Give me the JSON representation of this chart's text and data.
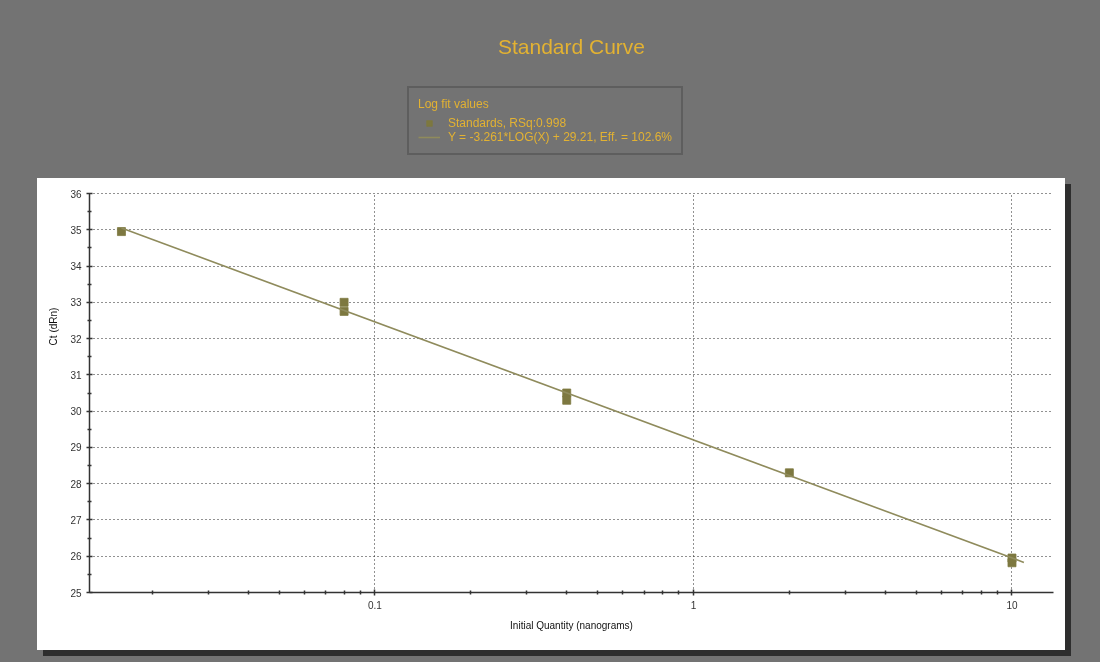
{
  "chart_data": {
    "type": "scatter",
    "title": "Standard Curve",
    "xlabel": "Initial Quantity (nanograms)",
    "ylabel": "Ct (dRn)",
    "legend_title": "Log fit values",
    "log": "x",
    "xlim": [
      0.0127,
      13.5
    ],
    "xticks": [
      {
        "value": 0.02,
        "label": null
      },
      {
        "value": 0.03,
        "label": null
      },
      {
        "value": 0.04,
        "label": null
      },
      {
        "value": 0.05,
        "label": null
      },
      {
        "value": 0.06,
        "label": null
      },
      {
        "value": 0.07,
        "label": null
      },
      {
        "value": 0.08,
        "label": null
      },
      {
        "value": 0.09,
        "label": null
      },
      0.1,
      {
        "value": 0.2,
        "label": null
      },
      {
        "value": 0.3,
        "label": null
      },
      {
        "value": 0.4,
        "label": null
      },
      {
        "value": 0.5,
        "label": null
      },
      {
        "value": 0.6,
        "label": null
      },
      {
        "value": 0.7,
        "label": null
      },
      {
        "value": 0.8,
        "label": null
      },
      {
        "value": 0.9,
        "label": null
      },
      1,
      {
        "value": 2,
        "label": null
      },
      {
        "value": 3,
        "label": null
      },
      {
        "value": 4,
        "label": null
      },
      {
        "value": 5,
        "label": null
      },
      {
        "value": 6,
        "label": null
      },
      {
        "value": 7,
        "label": null
      },
      {
        "value": 8,
        "label": null
      },
      {
        "value": 9,
        "label": null
      },
      10
    ],
    "ylim": [
      25,
      36
    ],
    "yticks": [
      25,
      {
        "value": 25.5,
        "label": null
      },
      26,
      {
        "value": 26.5,
        "label": null
      },
      27,
      {
        "value": 27.5,
        "label": null
      },
      28,
      {
        "value": 28.5,
        "label": null
      },
      29,
      {
        "value": 29.5,
        "label": null
      },
      30,
      {
        "value": 30.5,
        "label": null
      },
      31,
      {
        "value": 31.5,
        "label": null
      },
      32,
      {
        "value": 32.5,
        "label": null
      },
      33,
      {
        "value": 33.5,
        "label": null
      },
      34,
      {
        "value": 34.5,
        "label": null
      },
      35,
      {
        "value": 35.5,
        "label": null
      },
      36
    ],
    "grid": true,
    "legend": "top",
    "marker": "square",
    "series": [
      {
        "name": "Standards, RSq:0.998",
        "color": "#7d7840",
        "x": [
          0.016,
          0.08,
          0.08,
          0.4,
          0.4,
          2,
          10,
          10
        ],
        "values": [
          34.95,
          33.0,
          32.75,
          30.5,
          30.3,
          28.3,
          25.95,
          25.82
        ]
      },
      {
        "name": "Y = -3.261*LOG(X) + 29.21, Eff. = 102.6%",
        "type": "line",
        "marker": "none",
        "color": "#8f8b5c",
        "x": [
          0.016,
          10.9
        ],
        "values": [
          35.05,
          25.83
        ]
      }
    ]
  }
}
